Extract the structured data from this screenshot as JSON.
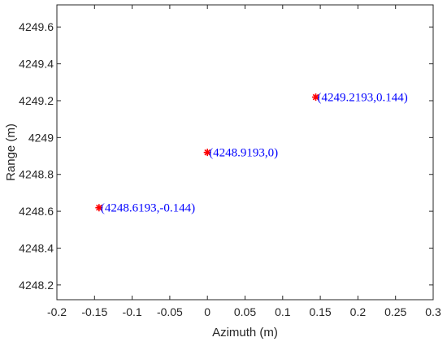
{
  "chart_data": {
    "type": "scatter",
    "title": "",
    "xlabel": "Azimuth (m)",
    "ylabel": "Range (m)",
    "xlim": [
      -0.2,
      0.3
    ],
    "ylim": [
      4248.12,
      4249.72
    ],
    "xticks": [
      -0.2,
      -0.15,
      -0.1,
      -0.05,
      0,
      0.05,
      0.1,
      0.15,
      0.2,
      0.25,
      0.3
    ],
    "xtick_labels": [
      "-0.2",
      "-0.15",
      "-0.1",
      "-0.05",
      "0",
      "0.05",
      "0.1",
      "0.15",
      "0.2",
      "0.25",
      "0.3"
    ],
    "yticks": [
      4248.2,
      4248.4,
      4248.6,
      4248.8,
      4249.0,
      4249.2,
      4249.4,
      4249.6
    ],
    "ytick_labels": [
      "4248.2",
      "4248.4",
      "4248.6",
      "4248.8",
      "4249",
      "4249.2",
      "4249.4",
      "4249.6"
    ],
    "grid": false,
    "marker_color": "#ff0000",
    "annotation_color": "#0000ff",
    "points": [
      {
        "x": -0.144,
        "y": 4248.6193,
        "label": "(4248.6193,-0.144)"
      },
      {
        "x": 0,
        "y": 4248.9193,
        "label": "(4248.9193,0)"
      },
      {
        "x": 0.144,
        "y": 4249.2193,
        "label": "(4249.2193,0.144)"
      }
    ]
  }
}
